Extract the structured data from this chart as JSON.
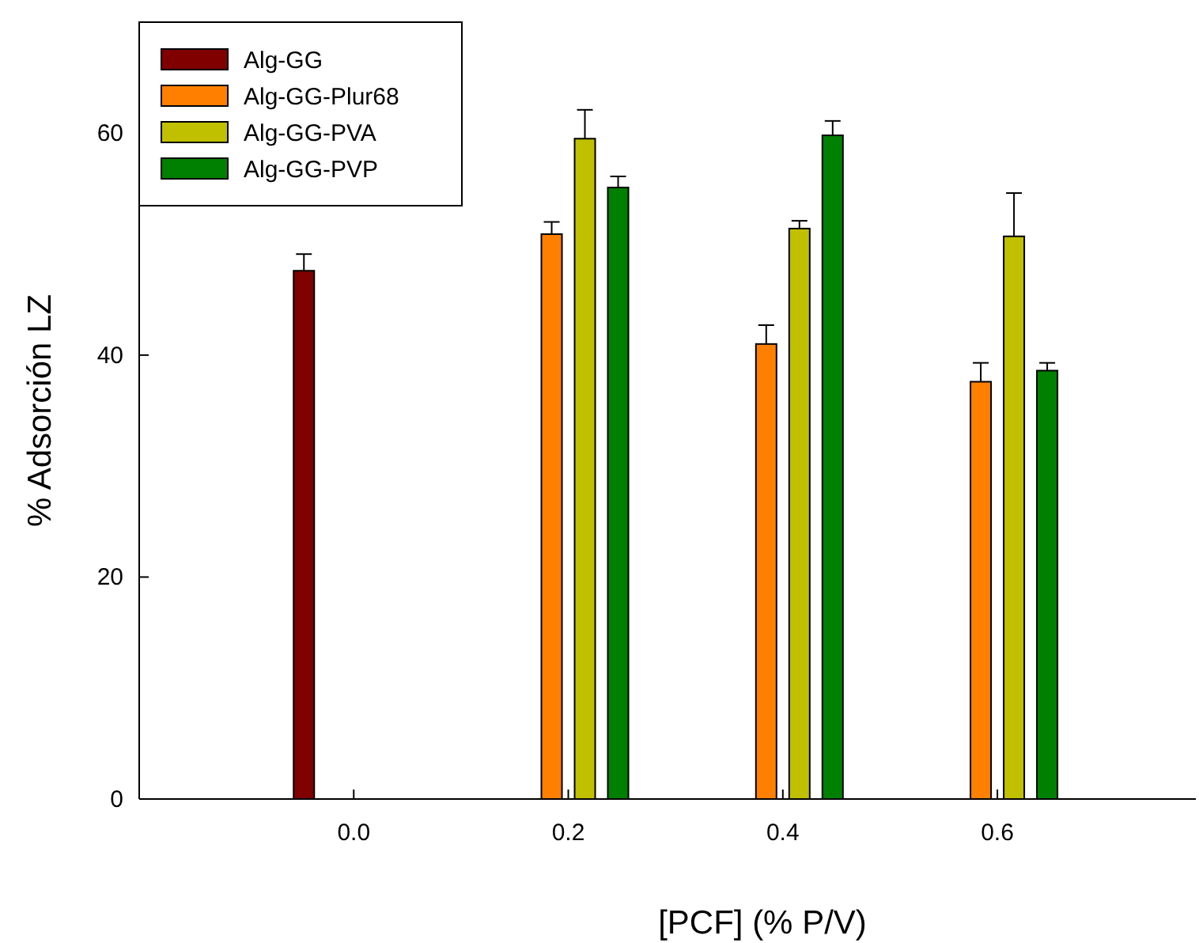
{
  "chart_data": {
    "type": "bar",
    "xlabel": "[PCF] (% P/V)",
    "ylabel": "% Adsorción LZ",
    "x": [
      0,
      0.2,
      0.4,
      0.6
    ],
    "xlim": [
      -0.2,
      0.785
    ],
    "xticks": [
      {
        "value": 0,
        "label": "0.0"
      },
      {
        "value": 0.2,
        "label": "0.2"
      },
      {
        "value": 0.4,
        "label": "0.4"
      },
      {
        "value": 0.6,
        "label": "0.6"
      }
    ],
    "ylim": [
      0,
      70
    ],
    "yticks": [
      0,
      20,
      40,
      60
    ],
    "legend": "top left",
    "grid": false,
    "series": [
      {
        "name": "Alg-GG",
        "color": "#800000",
        "values": [
          47.6,
          null,
          null,
          null
        ],
        "errors": [
          [
            47.6,
            49.1
          ],
          null,
          null,
          null
        ]
      },
      {
        "name": "Alg-GG-Plur68",
        "color": "#ff8000",
        "values": [
          null,
          50.9,
          41.0,
          37.6
        ],
        "errors": [
          null,
          [
            50.9,
            52.0
          ],
          [
            41.0,
            42.7
          ],
          [
            37.6,
            39.3
          ]
        ]
      },
      {
        "name": "Alg-GG-PVA",
        "color": "#c0c000",
        "values": [
          null,
          59.5,
          51.4,
          50.7
        ],
        "errors": [
          null,
          [
            59.5,
            62.1
          ],
          [
            51.4,
            52.1
          ],
          [
            50.7,
            54.6
          ]
        ]
      },
      {
        "name": "Alg-GG-PVP",
        "color": "#008000",
        "values": [
          null,
          55.1,
          59.8,
          38.6
        ],
        "errors": [
          null,
          [
            55.1,
            56.1
          ],
          [
            59.8,
            61.1
          ],
          [
            38.6,
            39.3
          ]
        ]
      }
    ]
  }
}
